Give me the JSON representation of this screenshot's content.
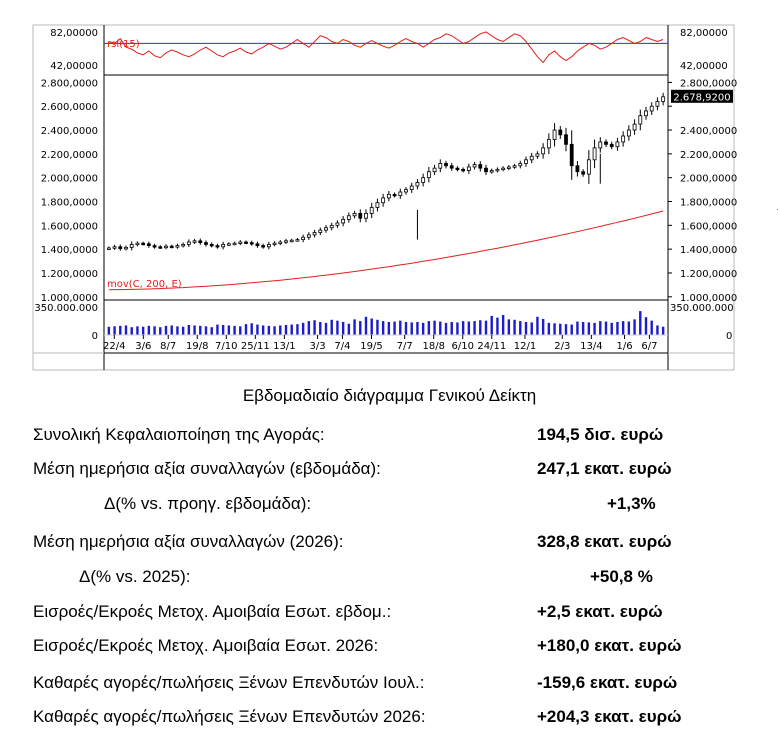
{
  "chart_data": {
    "type": "candlestick",
    "panels": {
      "rsi": {
        "label": "rsi(15)",
        "ticks": [
          "82,00000",
          "42,00000"
        ],
        "level": 70,
        "range": [
          40,
          84
        ],
        "values": [
          72,
          70,
          75,
          66,
          64,
          60,
          58,
          62,
          57,
          55,
          60,
          63,
          61,
          58,
          56,
          59,
          63,
          66,
          62,
          58,
          56,
          60,
          62,
          65,
          61,
          59,
          63,
          66,
          70,
          67,
          64,
          66,
          70,
          74,
          70,
          66,
          72,
          78,
          76,
          72,
          70,
          74,
          72,
          68,
          66,
          70,
          73,
          70,
          67,
          65,
          68,
          72,
          75,
          72,
          70,
          66,
          70,
          74,
          76,
          80,
          78,
          74,
          70,
          72,
          76,
          80,
          82,
          78,
          74,
          72,
          76,
          80,
          78,
          72,
          64,
          56,
          50,
          58,
          62,
          56,
          52,
          56,
          62,
          66,
          70,
          68,
          64,
          66,
          70,
          74,
          76,
          73,
          70,
          72,
          76,
          74,
          72,
          74
        ]
      },
      "price": {
        "ticks": [
          "2.800,0000",
          "2.600,0000",
          "2.400,0000",
          "2.200,0000",
          "2.000,0000",
          "1.800,0000",
          "1.600,0000",
          "1.400,0000",
          "1.200,0000",
          "1.000,0000"
        ],
        "tick_values": [
          2800,
          2600,
          2400,
          2200,
          2000,
          1800,
          1600,
          1400,
          1200,
          1000
        ],
        "range": [
          990,
          2820
        ],
        "last_value_label": "2.678,9200",
        "ma_label": "mov(C, 200, E)",
        "closes": [
          1410,
          1420,
          1405,
          1415,
          1440,
          1450,
          1445,
          1430,
          1420,
          1415,
          1425,
          1420,
          1430,
          1440,
          1460,
          1470,
          1455,
          1440,
          1430,
          1420,
          1440,
          1445,
          1450,
          1460,
          1455,
          1445,
          1430,
          1420,
          1440,
          1450,
          1460,
          1470,
          1475,
          1480,
          1500,
          1520,
          1540,
          1560,
          1580,
          1600,
          1620,
          1650,
          1680,
          1700,
          1660,
          1700,
          1750,
          1790,
          1830,
          1860,
          1850,
          1880,
          1900,
          1930,
          1960,
          2000,
          2050,
          2080,
          2120,
          2100,
          2080,
          2070,
          2060,
          2090,
          2110,
          2080,
          2050,
          2060,
          2070,
          2080,
          2090,
          2100,
          2120,
          2150,
          2180,
          2200,
          2250,
          2320,
          2400,
          2360,
          2280,
          2100,
          2050,
          2030,
          2150,
          2250,
          2300,
          2280,
          2260,
          2300,
          2350,
          2400,
          2450,
          2520,
          2560,
          2600,
          2640,
          2679
        ],
        "volumes": [
          95,
          100,
          105,
          110,
          90,
          100,
          95,
          105,
          100,
          90,
          105,
          110,
          100,
          95,
          115,
          110,
          105,
          100,
          90,
          120,
          115,
          110,
          105,
          100,
          125,
          135,
          120,
          110,
          105,
          100,
          110,
          115,
          120,
          125,
          140,
          160,
          170,
          150,
          140,
          175,
          165,
          150,
          130,
          180,
          160,
          210,
          190,
          175,
          160,
          150,
          155,
          165,
          150,
          145,
          150,
          140,
          160,
          165,
          155,
          140,
          150,
          145,
          160,
          155,
          160,
          170,
          165,
          220,
          200,
          230,
          180,
          175,
          160,
          150,
          145,
          210,
          185,
          140,
          135,
          130,
          125,
          120,
          155,
          150,
          145,
          140,
          160,
          155,
          140,
          150,
          160,
          155,
          180,
          275,
          205,
          165,
          110,
          95
        ]
      },
      "volume": {
        "ticks": [
          "350.000.000",
          "0"
        ],
        "range": [
          0,
          380
        ]
      }
    },
    "x_tick_labels": [
      "22/4",
      "3/6",
      "8/7",
      "19/8",
      "7/10",
      "25/11",
      "13/1",
      "3/3",
      "7/4",
      "19/5",
      "7/7",
      "18/8",
      "6/10",
      "24/11",
      "12/1",
      "2/3",
      "13/4",
      "1/6",
      "6/7"
    ],
    "x_tick_index": [
      2,
      9,
      15,
      22,
      29,
      36,
      43,
      51,
      57,
      64,
      72,
      79,
      86,
      93,
      101,
      110,
      117,
      125,
      131
    ]
  },
  "caption": "Εβδομαδιαίο διάγραμμα Γενικού Δείκτη",
  "stats": [
    {
      "label": "Συνολική Κεφαλαιοποίηση της Αγοράς:",
      "value": "194,5 δισ. ευρώ"
    },
    {
      "label": "Μέση ημερήσια αξία συναλλαγών (εβδομάδα):",
      "value": "247,1 εκατ. ευρώ"
    },
    {
      "label": "Δ(% vs. προηγ. εβδομάδα):",
      "value": "+1,3%"
    },
    {
      "label": "Μέση ημερήσια αξία συναλλαγών (2026):",
      "value": "328,8 εκατ. ευρώ"
    },
    {
      "label": "Δ(% vs. 2025):",
      "value": "+50,8 %"
    },
    {
      "label": "Εισροές/Εκροές Μετοχ. Αμοιβαία Εσωτ. εβδομ.:",
      "value": "+2,5 εκατ. ευρώ"
    },
    {
      "label": "Εισροές/Εκροές Μετοχ. Αμοιβαία Εσωτ. 2026:",
      "value": "+180,0 εκατ. ευρώ"
    },
    {
      "label": "Καθαρές αγορές/πωλήσεις Ξένων Επενδυτών Ιουλ.:",
      "value": "-159,6 εκατ. ευρώ"
    },
    {
      "label": "Καθαρές αγορές/πωλήσεις Ξένων Επενδυτών 2026:",
      "value": "+204,3 εκατ. ευρώ"
    }
  ],
  "colors": {
    "rsi_line": "#e0201c",
    "rsi_level": "#2a2aff",
    "ma_line": "#e0201c",
    "volume_bar": "#1c1ccc",
    "last_label_bg": "#000000"
  }
}
